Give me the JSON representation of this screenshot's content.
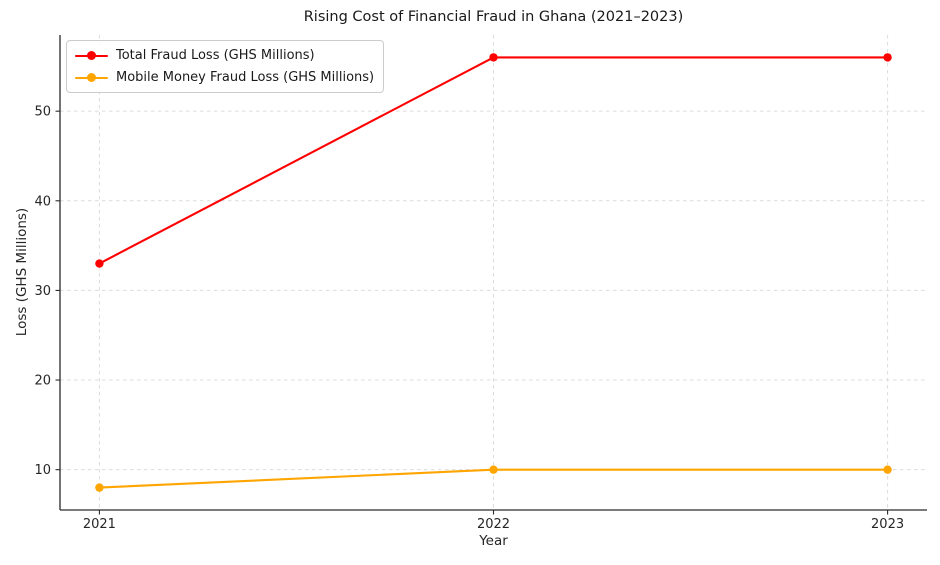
{
  "chart_data": {
    "type": "line",
    "title": "Rising Cost of Financial Fraud in Ghana (2021–2023)",
    "xlabel": "Year",
    "ylabel": "Loss (GHS Millions)",
    "categories": [
      "2021",
      "2022",
      "2023"
    ],
    "series": [
      {
        "name": "Total Fraud Loss (GHS Millions)",
        "color": "#ff0000",
        "marker": "circle",
        "values": [
          33,
          56,
          56
        ]
      },
      {
        "name": "Mobile Money Fraud Loss (GHS Millions)",
        "color": "#ffa500",
        "marker": "circle",
        "values": [
          8,
          10,
          10
        ]
      }
    ],
    "yticks": [
      10,
      20,
      30,
      40,
      50
    ],
    "ylim": [
      5.5,
      58.5
    ],
    "xlim_index": [
      -0.1,
      2.1
    ],
    "grid": {
      "visible": true,
      "style": "dashed",
      "color": "#dcdcdc"
    },
    "legend": {
      "position": "upper-left",
      "entries": [
        "Total Fraud Loss (GHS Millions)",
        "Mobile Money Fraud Loss (GHS Millions)"
      ]
    }
  }
}
